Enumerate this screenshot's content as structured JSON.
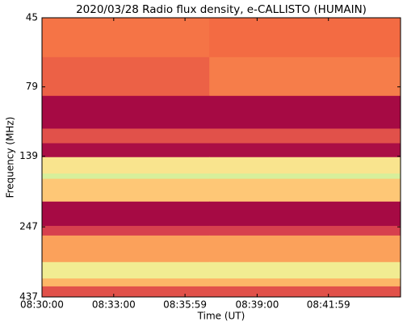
{
  "chart_data": {
    "type": "heatmap",
    "title": "2020/03/28  Radio flux density, e-CALLISTO (HUMAIN)",
    "xlabel": "Time (UT)",
    "ylabel": "Frequency (MHz)",
    "xlim": [
      "08:30:00",
      "08:45:00"
    ],
    "xticks": [
      "08:30:00",
      "08:33:00",
      "08:35:59",
      "08:39:00",
      "08:41:59"
    ],
    "ylim": [
      437,
      45
    ],
    "yscale": "log",
    "yticks": [
      45,
      79,
      139,
      247,
      437
    ],
    "x_edges": [
      "08:30:00",
      "08:37:00",
      "08:45:00"
    ],
    "y_edges": [
      45,
      62,
      85,
      111,
      125,
      140,
      160,
      167,
      201,
      245,
      265,
      329,
      376,
      401,
      437
    ],
    "z": [
      [
        0.3,
        0.28
      ],
      [
        0.25,
        0.32
      ],
      [
        0.02,
        0.02
      ],
      [
        0.2,
        0.2
      ],
      [
        0.03,
        0.03
      ],
      [
        0.6,
        0.6
      ],
      [
        0.75,
        0.75
      ],
      [
        0.5,
        0.5
      ],
      [
        0.02,
        0.02
      ],
      [
        0.15,
        0.15
      ],
      [
        0.4,
        0.4
      ],
      [
        0.65,
        0.65
      ],
      [
        0.45,
        0.45
      ],
      [
        0.2,
        0.2
      ]
    ],
    "zlim": [
      0,
      1
    ],
    "colormap": [
      "#9e0142",
      "#d53e4f",
      "#f46d43",
      "#fdae61",
      "#fee08b",
      "#e6f598",
      "#abdda4",
      "#66c2a5"
    ]
  }
}
